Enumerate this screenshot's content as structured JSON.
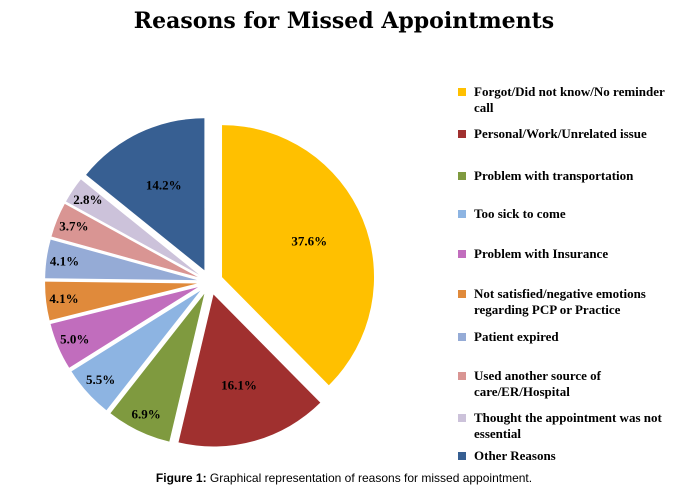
{
  "chart_data": {
    "type": "pie",
    "title": "Reasons for Missed Appointments",
    "slices": [
      {
        "label": "Forgot/Did not know/No reminder call",
        "value": 37.6,
        "display": "37.6%",
        "color": "#FFC000"
      },
      {
        "label": "Personal/Work/Unrelated issue",
        "value": 16.1,
        "display": "16.1%",
        "color": "#A0302F"
      },
      {
        "label": "Problem with transportation",
        "value": 6.9,
        "display": "6.9%",
        "color": "#7F9A3F"
      },
      {
        "label": "Too sick to come",
        "value": 5.5,
        "display": "5.5%",
        "color": "#8DB4E2"
      },
      {
        "label": "Problem with Insurance",
        "value": 5.0,
        "display": "5.0%",
        "color": "#C16DBD"
      },
      {
        "label": "Not satisfied/negative emotions regarding PCP or Practice",
        "value": 4.1,
        "display": "4.1%",
        "color": "#E08A3B"
      },
      {
        "label": "Patient expired",
        "value": 4.1,
        "display": "4.1%",
        "color": "#95ABD6"
      },
      {
        "label": "Used another source of care/ER/Hospital",
        "value": 3.7,
        "display": "3.7%",
        "color": "#D99593"
      },
      {
        "label": "Thought the appointment was not essential",
        "value": 2.8,
        "display": "2.8%",
        "color": "#CCC2DA"
      },
      {
        "label": "Other Reasons",
        "value": 14.2,
        "display": "14.2%",
        "color": "#375F92"
      }
    ],
    "legend_position": "right"
  },
  "caption": {
    "prefix": "Figure 1:",
    "text": " Graphical representation of reasons for missed appointment."
  }
}
